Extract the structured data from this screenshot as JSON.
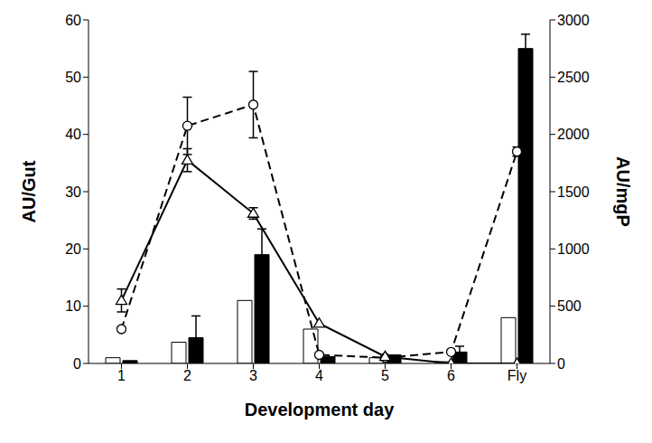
{
  "chart_data": {
    "type": "bar",
    "x_label": "Development day",
    "y_label": "AU/Gut",
    "y2_label": "AU/mgP",
    "categories": [
      "1",
      "2",
      "3",
      "4",
      "5",
      "6",
      "Fly"
    ],
    "ylim": [
      0,
      60
    ],
    "yticks": [
      0,
      10,
      20,
      30,
      40,
      50,
      60
    ],
    "y2lim": [
      0,
      3000
    ],
    "y2ticks": [
      0,
      500,
      1000,
      1500,
      2000,
      2500,
      3000
    ],
    "series": [
      {
        "type": "bar",
        "axis": "y2",
        "color": "#ffffff",
        "values": [
          50,
          185,
          550,
          300,
          50,
          15,
          400
        ],
        "errors": [
          0,
          0,
          0,
          0,
          0,
          0,
          0
        ]
      },
      {
        "type": "bar",
        "axis": "y2",
        "color": "#000000",
        "values": [
          25,
          225,
          950,
          60,
          75,
          100,
          2750
        ],
        "errors": [
          0,
          190,
          225,
          0,
          0,
          50,
          125
        ]
      },
      {
        "type": "line",
        "color": "#000000",
        "marker": "circle",
        "line_style": "dashed",
        "values": [
          6,
          41.5,
          45.2,
          1.5,
          1,
          2,
          37
        ],
        "errors": [
          0,
          5,
          5.8,
          0,
          0,
          0,
          0.8
        ]
      },
      {
        "type": "line",
        "color": "#000000",
        "marker": "triangle",
        "line_style": "solid",
        "values": [
          11,
          35.5,
          26.2,
          7,
          1.2,
          0,
          0
        ],
        "errors": [
          2,
          2,
          1,
          0,
          0,
          0,
          0
        ]
      }
    ]
  }
}
